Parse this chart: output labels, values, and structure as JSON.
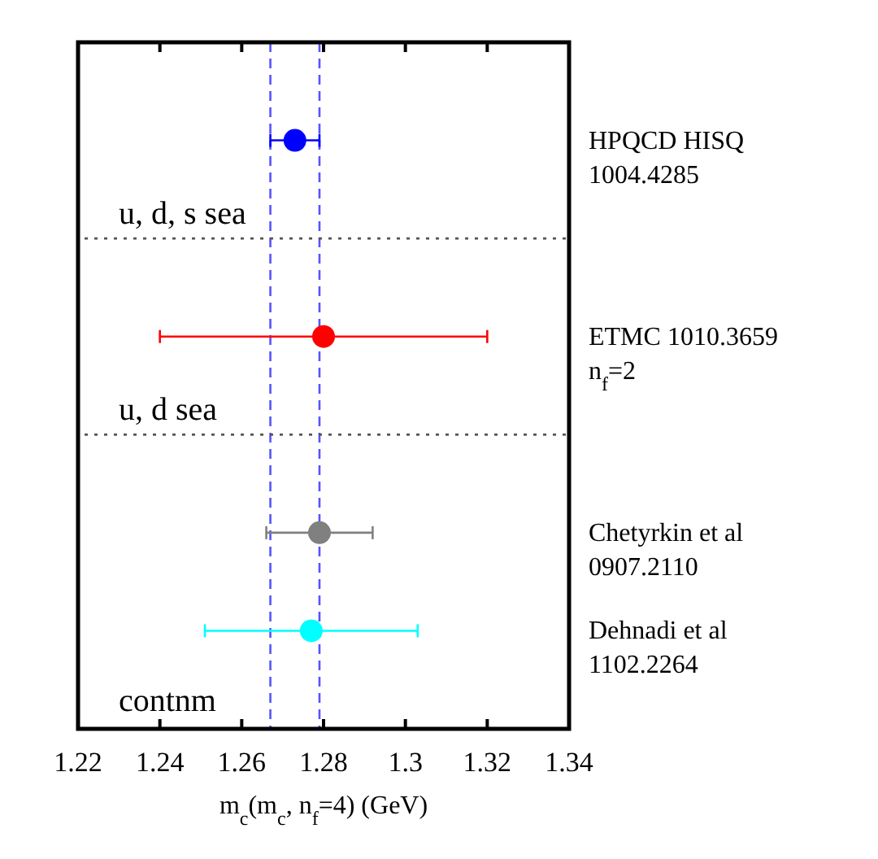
{
  "chart_data": {
    "type": "scatter",
    "orientation": "horizontal",
    "xlabel": "m$_{c}$(m$_{c}$, n$_{f}$=4) (GeV)",
    "categories": [
      "HPQCD HISQ\n1004.4285",
      null,
      "ETMC 1010.3659\nn$_{f}$=2",
      null,
      "Chetyrkin et al\n0907.2110",
      "Dehnadi et al\n1102.2264"
    ],
    "values": [
      1.273,
      null,
      1.28,
      null,
      1.279,
      1.277
    ],
    "errors": [
      0.006,
      null,
      0.04,
      null,
      0.013,
      0.026
    ],
    "colors": [
      "#0000ff",
      null,
      "#ff0000",
      null,
      "#808080",
      "#00ffff"
    ],
    "marker": "circle",
    "xlim": [
      1.22,
      1.34
    ],
    "xticks": [
      1.22,
      1.24,
      1.26,
      1.28,
      1.3,
      1.32,
      1.34
    ],
    "ref_lines": [
      {
        "axis": "x",
        "value": 1.267,
        "color": "#5555ff",
        "line_style": "dashed"
      },
      {
        "axis": "x",
        "value": 1.279,
        "color": "#5555ff",
        "line_style": "dashed"
      }
    ],
    "annotations": [
      "u, d, s sea",
      "u, d sea",
      "contnm"
    ],
    "grid": false
  }
}
